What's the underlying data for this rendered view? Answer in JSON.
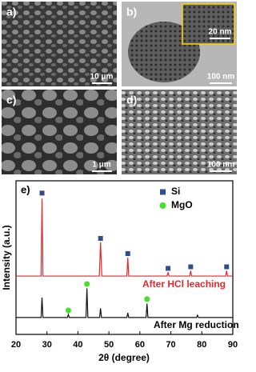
{
  "panels": [
    {
      "label": "a)",
      "scale": "10 μm"
    },
    {
      "label": "b)",
      "scale": "100 nm",
      "inset_scale": "20 nm"
    },
    {
      "label": "c)",
      "scale": "1 μm"
    },
    {
      "label": "d)",
      "scale": "100 nm"
    }
  ],
  "chart_data": {
    "type": "line",
    "label": "e)",
    "x_label": "2θ (degree)",
    "y_label": "Intensity (a.u.)",
    "xlim": [
      20,
      90
    ],
    "xticks": [
      20,
      30,
      40,
      50,
      60,
      70,
      80,
      90
    ],
    "ylim": [
      0,
      100
    ],
    "series": [
      {
        "name": "After HCl leaching",
        "color": "#e8262b",
        "x": [
          20,
          28.1,
          28.4,
          28.7,
          46.9,
          47.3,
          47.7,
          55.8,
          56.1,
          56.4,
          68.8,
          69.1,
          69.4,
          76.1,
          76.4,
          76.7,
          87.7,
          88.0,
          88.3,
          90
        ],
        "values": [
          38,
          38,
          88.5,
          38,
          38,
          60,
          38,
          38,
          50,
          38,
          38,
          40.5,
          38,
          38,
          41.5,
          38,
          38,
          41.5,
          38,
          38
        ]
      },
      {
        "name": "After Mg reduction",
        "color": "#111111",
        "x": [
          20,
          28.1,
          28.4,
          28.7,
          36.6,
          36.9,
          37.2,
          42.6,
          42.9,
          43.2,
          47.0,
          47.3,
          47.6,
          55.8,
          56.1,
          56.4,
          62.0,
          62.3,
          62.6,
          78.3,
          78.6,
          78.9,
          90
        ],
        "values": [
          11,
          11,
          24,
          11,
          11,
          13,
          11,
          11,
          30,
          11,
          11,
          17,
          11,
          11,
          14,
          11,
          11,
          20,
          11,
          11,
          12.5,
          11,
          11
        ]
      }
    ],
    "markers": [
      {
        "name": "Si",
        "color": "#2e4f8f",
        "shape": "square",
        "x": [
          28.4,
          47.3,
          56.1,
          69.1,
          76.4,
          88.0
        ],
        "y": [
          92,
          62.5,
          52.6,
          43,
          44,
          44
        ]
      },
      {
        "name": "MgO",
        "color": "#44e02a",
        "shape": "circle",
        "x": [
          36.9,
          42.9,
          62.3
        ],
        "y": [
          15.6,
          32.8,
          23
        ]
      }
    ]
  }
}
